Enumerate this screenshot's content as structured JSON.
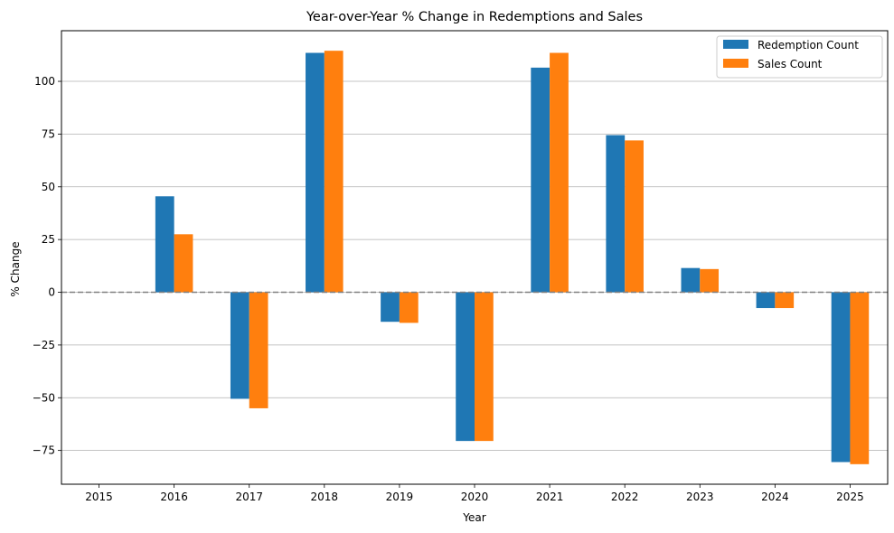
{
  "chart_data": {
    "type": "bar",
    "title": "Year-over-Year % Change in Redemptions and Sales",
    "xlabel": "Year",
    "ylabel": "% Change",
    "categories": [
      "2015",
      "2016",
      "2017",
      "2018",
      "2019",
      "2020",
      "2021",
      "2022",
      "2023",
      "2024",
      "2025"
    ],
    "series": [
      {
        "name": "Redemption Count",
        "color": "#1f77b4",
        "values": [
          null,
          45.5,
          -50.5,
          113.5,
          -14.0,
          -70.5,
          106.5,
          74.5,
          11.5,
          -7.5,
          -80.5
        ]
      },
      {
        "name": "Sales Count",
        "color": "#ff7f0e",
        "values": [
          null,
          27.5,
          -55.0,
          114.5,
          -14.5,
          -70.5,
          113.5,
          72.0,
          11.0,
          -7.5,
          -81.5
        ]
      }
    ],
    "ylim": [
      -91,
      124
    ],
    "yticks": [
      -75,
      -50,
      -25,
      0,
      25,
      50,
      75,
      100
    ],
    "ytick_labels": [
      "−75",
      "−50",
      "−25",
      "0",
      "25",
      "50",
      "75",
      "100"
    ],
    "grid": "y",
    "zero_line": {
      "value": 0,
      "style": "dashed",
      "color": "#808080"
    },
    "legend_position": "top-right"
  }
}
